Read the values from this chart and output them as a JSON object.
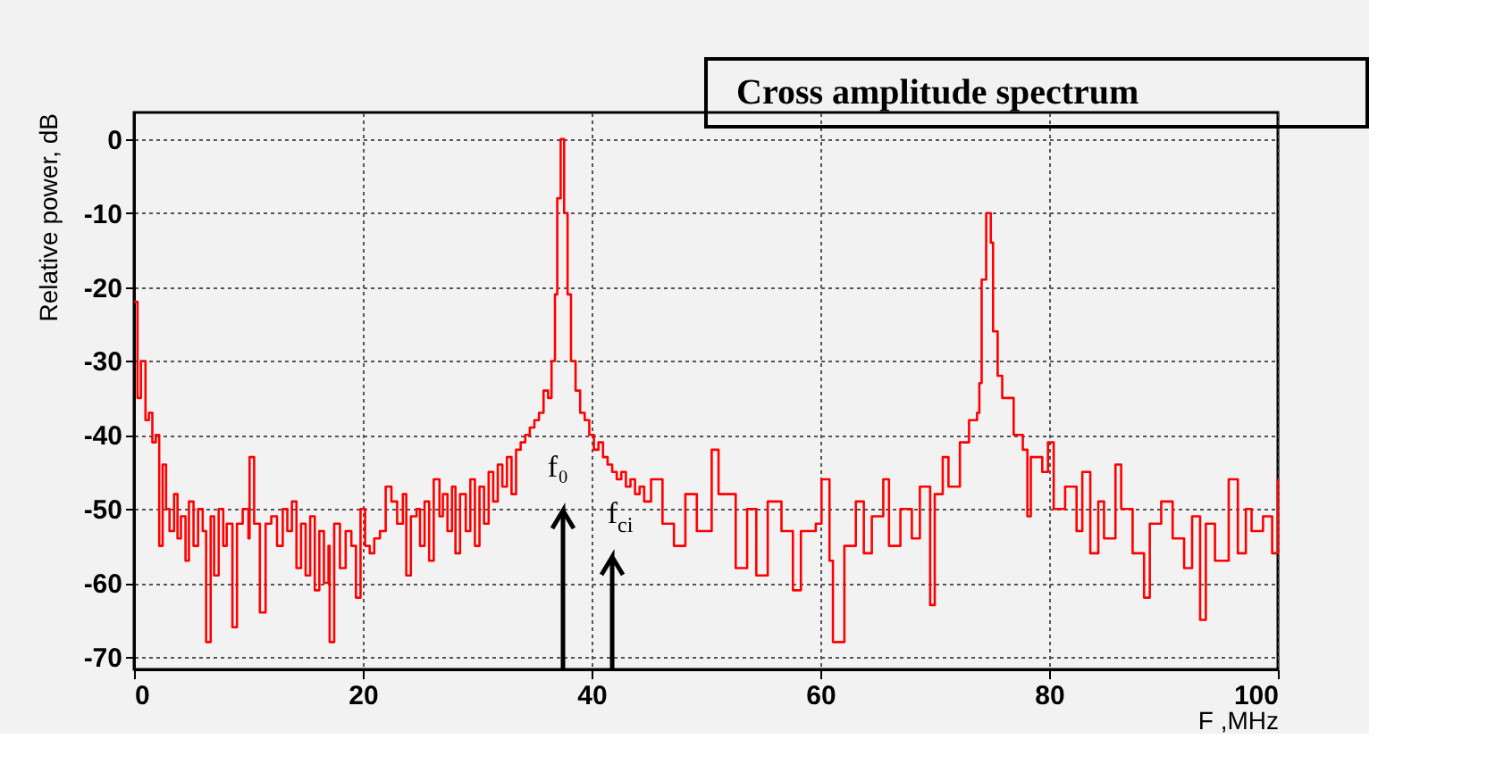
{
  "chart_data": {
    "type": "step",
    "title": "Cross amplitude spectrum",
    "xlabel": "F ,MHz",
    "ylabel": "Relative power, dB",
    "x": [
      0,
      0.3,
      0.6,
      1.0,
      1.3,
      1.6,
      1.9,
      2.2,
      2.5,
      2.8,
      3.1,
      3.5,
      3.8,
      4.1,
      4.5,
      4.8,
      5.2,
      5.6,
      6.0,
      6.3,
      6.7,
      7.0,
      7.4,
      7.8,
      8.1,
      8.6,
      9.0,
      9.5,
      10.0,
      10.1,
      10.5,
      11.0,
      11.5,
      12.0,
      12.5,
      13.0,
      13.4,
      13.8,
      14.2,
      14.6,
      15.0,
      15.4,
      15.8,
      16.2,
      16.6,
      17.0,
      17.1,
      17.5,
      18.0,
      18.5,
      19.0,
      19.4,
      19.8,
      20.2,
      20.6,
      21.0,
      21.5,
      22.0,
      22.5,
      23.0,
      23.5,
      23.8,
      24.2,
      24.7,
      25.0,
      25.4,
      25.8,
      26.2,
      26.7,
      27.0,
      27.4,
      27.8,
      28.1,
      28.5,
      29.0,
      29.4,
      29.8,
      30.2,
      30.6,
      31.0,
      31.4,
      31.8,
      32.2,
      32.6,
      33.0,
      33.4,
      33.8,
      34.2,
      34.6,
      35.0,
      35.4,
      35.8,
      36.2,
      36.5,
      36.8,
      37.0,
      37.3,
      37.6,
      37.9,
      38.2,
      38.6,
      39.0,
      39.4,
      39.8,
      40.2,
      40.6,
      41.0,
      41.4,
      41.8,
      42.2,
      42.6,
      43.0,
      43.4,
      43.8,
      44.2,
      44.6,
      45.2,
      46.2,
      47.2,
      48.2,
      49.2,
      50.5,
      51.1,
      52.6,
      53.6,
      54.4,
      55.4,
      56.6,
      57.6,
      58.3,
      59.6,
      60.1,
      60.8,
      61.1,
      62.1,
      63.1,
      63.8,
      64.5,
      65.5,
      66.0,
      67.0,
      68.0,
      68.7,
      69.6,
      70.0,
      70.7,
      71.2,
      72.2,
      73.0,
      73.7,
      73.9,
      74.1,
      74.5,
      74.9,
      75.1,
      75.5,
      75.9,
      76.9,
      77.7,
      78.1,
      78.4,
      79.4,
      79.9,
      80.4,
      81.4,
      82.4,
      82.9,
      83.6,
      84.3,
      84.8,
      85.8,
      86.3,
      87.3,
      88.3,
      88.8,
      89.8,
      90.8,
      91.8,
      92.5,
      93.2,
      93.7,
      94.5,
      95.7,
      96.5,
      97.2,
      97.7,
      98.7,
      99.5,
      100
    ],
    "series": [
      {
        "color": "#ff0000",
        "values": [
          -22,
          -35,
          -30,
          -38,
          -37,
          -41,
          -40,
          -55,
          -44,
          -50,
          -53,
          -48,
          -54,
          -51,
          -57,
          -49,
          -55,
          -50,
          -53,
          -68,
          -51,
          -59,
          -50,
          -55,
          -52,
          -66,
          -52,
          -50,
          -54,
          -43,
          -52,
          -64,
          -52,
          -51,
          -55,
          -50,
          -53,
          -49,
          -58,
          -52,
          -59,
          -51,
          -61,
          -53,
          -60,
          -55,
          -68,
          -52,
          -58,
          -53,
          -55,
          -62,
          -50,
          -55,
          -56,
          -54,
          -53,
          -47,
          -49,
          -52,
          -48,
          -59,
          -51,
          -50,
          -55,
          -49,
          -57,
          -46,
          -51,
          -48,
          -53,
          -47,
          -56,
          -48,
          -53,
          -46,
          -55,
          -47,
          -52,
          -45,
          -49,
          -44,
          -47,
          -43,
          -48,
          -42,
          -41,
          -40,
          -39,
          -38,
          -37,
          -34,
          -35,
          -30,
          -21,
          -8,
          0,
          -10,
          -21,
          -30,
          -34,
          -37,
          -38,
          -40,
          -42,
          -41,
          -43,
          -44,
          -45,
          -46,
          -45,
          -47,
          -46,
          -48,
          -47,
          -49,
          -46,
          -52,
          -55,
          -48,
          -53,
          -42,
          -48,
          -58,
          -50,
          -59,
          -49,
          -53,
          -61,
          -53,
          -52,
          -46,
          -57,
          -68,
          -55,
          -49,
          -56,
          -51,
          -46,
          -55,
          -50,
          -54,
          -47,
          -63,
          -48,
          -43,
          -47,
          -41,
          -38,
          -37,
          -33,
          -19,
          -10,
          -14,
          -26,
          -32,
          -35,
          -40,
          -42,
          -51,
          -43,
          -45,
          -41,
          -50,
          -47,
          -53,
          -45,
          -56,
          -49,
          -54,
          -44,
          -50,
          -56,
          -62,
          -52,
          -49,
          -54,
          -58,
          -51,
          -65,
          -52,
          -57,
          -46,
          -56,
          -50,
          -53,
          -51,
          -56,
          -46
        ]
      }
    ],
    "xlim": [
      0,
      100
    ],
    "ylim": [
      -71.7,
      3.6
    ],
    "xticks": [
      0,
      20,
      40,
      60,
      80,
      100
    ],
    "yticks": [
      0,
      -10,
      -20,
      -30,
      -40,
      -50,
      -60,
      -70
    ],
    "grid": true,
    "ref_lines": [
      {
        "axis": "x",
        "value": 37.5,
        "label": "f₀"
      },
      {
        "axis": "x",
        "value": 41.8,
        "label": "f$_{ci}$"
      }
    ]
  }
}
